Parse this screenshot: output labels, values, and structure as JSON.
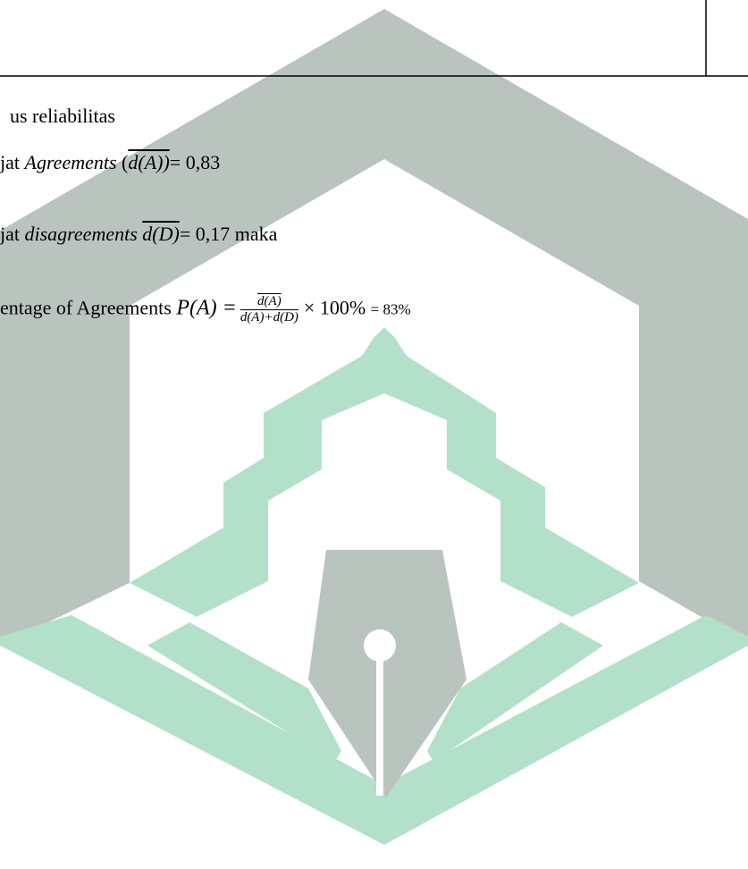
{
  "lines": [
    {
      "text": "us reliabilitas"
    },
    {
      "prefix": "jat ",
      "term": "Agreements",
      "open": " (",
      "symbol": "d(A))",
      "value": "= 0,83"
    },
    {
      "prefix": "jat ",
      "term": "disagreements",
      "symbol": "d(D)",
      "value": "= 0,17 maka"
    },
    {
      "prefix": "entage of Agreements ",
      "formula": "P(A) =",
      "numerator": "d(A)",
      "denominator": "d(A)+d(D)",
      "times": "× 100%",
      "result": "= 83%"
    }
  ]
}
